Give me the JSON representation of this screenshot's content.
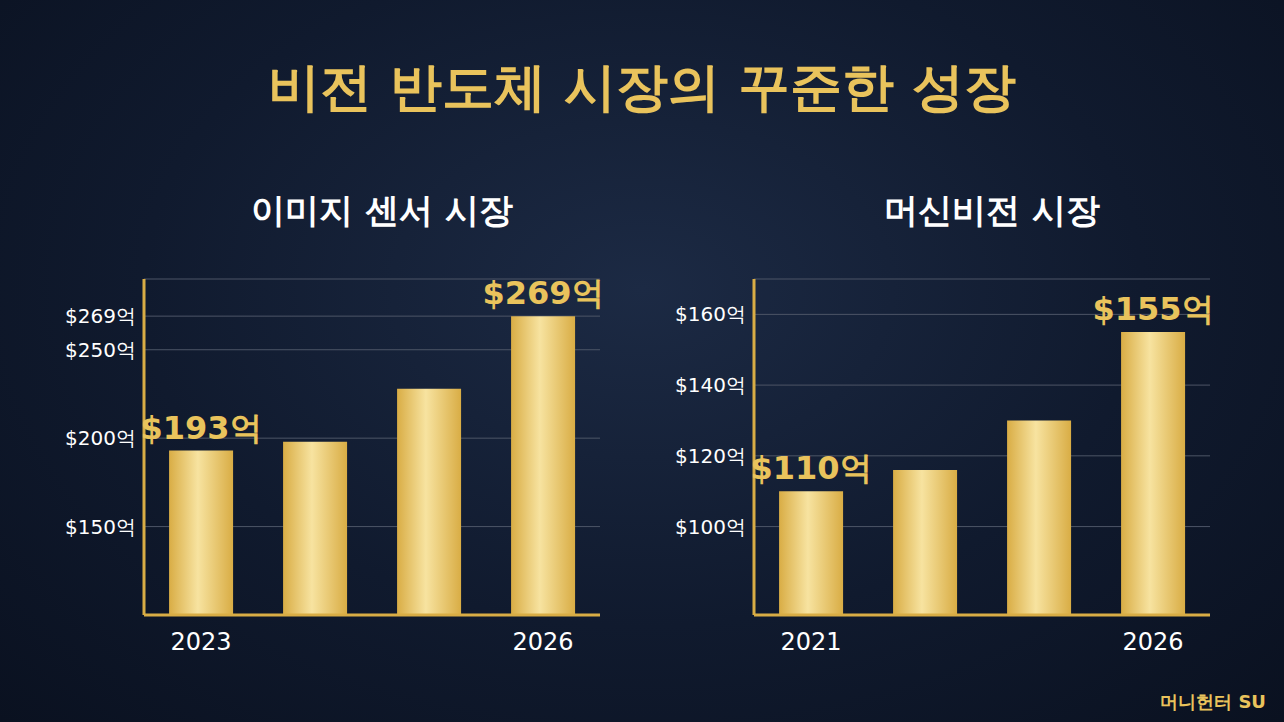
{
  "title": "비전 반도체 시장의 꾸준한 성장",
  "watermark": "머니헌터 SU",
  "chart_data": [
    {
      "type": "bar",
      "title": "이미지 센서 시장",
      "categories": [
        "2023",
        null,
        null,
        "2026"
      ],
      "values": [
        193,
        198,
        228,
        269
      ],
      "value_labels": [
        "$193억",
        null,
        null,
        "$269억"
      ],
      "color": "#d9ad45",
      "ylim": [
        100,
        290
      ],
      "yticks": [
        {
          "value": 150,
          "label": "$150억"
        },
        {
          "value": 200,
          "label": "$200억"
        },
        {
          "value": 250,
          "label": "$250억"
        },
        {
          "value": 269,
          "label": "$269억"
        }
      ],
      "grid": true,
      "data_labels": true
    },
    {
      "type": "bar",
      "title": "머신비전 시장",
      "categories": [
        "2021",
        null,
        null,
        "2026"
      ],
      "values": [
        110,
        116,
        130,
        155
      ],
      "value_labels": [
        "$110억",
        null,
        null,
        "$155억"
      ],
      "color": "#d9ad45",
      "ylim": [
        75,
        170
      ],
      "yticks": [
        {
          "value": 100,
          "label": "$100억"
        },
        {
          "value": 120,
          "label": "$120억"
        },
        {
          "value": 140,
          "label": "$140억"
        },
        {
          "value": 160,
          "label": "$160억"
        }
      ],
      "grid": true,
      "data_labels": true
    }
  ]
}
